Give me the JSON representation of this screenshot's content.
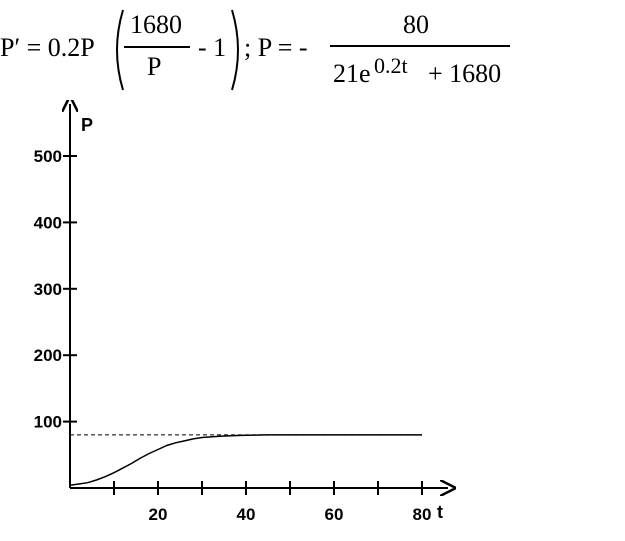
{
  "equation": {
    "lhs": "P′ = 0.2P",
    "frac1_num": "1680",
    "frac1_den": "P",
    "minus_one": "- 1",
    "sep": "; P = -",
    "frac2_num": "80",
    "frac2_den_base": "21e",
    "frac2_den_exp": "0.2t",
    "frac2_den_tail": "+ 1680"
  },
  "chart_data": {
    "type": "line",
    "xlabel": "t",
    "ylabel": "P",
    "xlim": [
      0,
      82
    ],
    "ylim": [
      0,
      560
    ],
    "x_ticks": [
      20,
      40,
      60,
      80
    ],
    "x_tick_labels": [
      "20",
      "40",
      "60",
      "80"
    ],
    "x_minor_ticks": [
      10,
      30,
      50,
      70
    ],
    "y_ticks": [
      100,
      200,
      300,
      400,
      500
    ],
    "y_tick_labels": [
      "100",
      "200",
      "300",
      "400",
      "500"
    ],
    "asymptote": 80,
    "series": [
      {
        "x": [
          0,
          2,
          4,
          6,
          8,
          10,
          12,
          14,
          16,
          18,
          20,
          22,
          24,
          26,
          28,
          30,
          32,
          34,
          36,
          38,
          40,
          45,
          50,
          60,
          70,
          80
        ],
        "y": [
          4,
          6,
          8,
          12,
          17,
          23,
          30,
          37,
          45,
          52,
          58,
          64,
          68,
          71,
          74,
          76,
          77,
          78,
          78.5,
          79,
          79.5,
          80,
          80,
          80,
          80,
          80
        ]
      }
    ],
    "grid": false,
    "legend": "none"
  }
}
